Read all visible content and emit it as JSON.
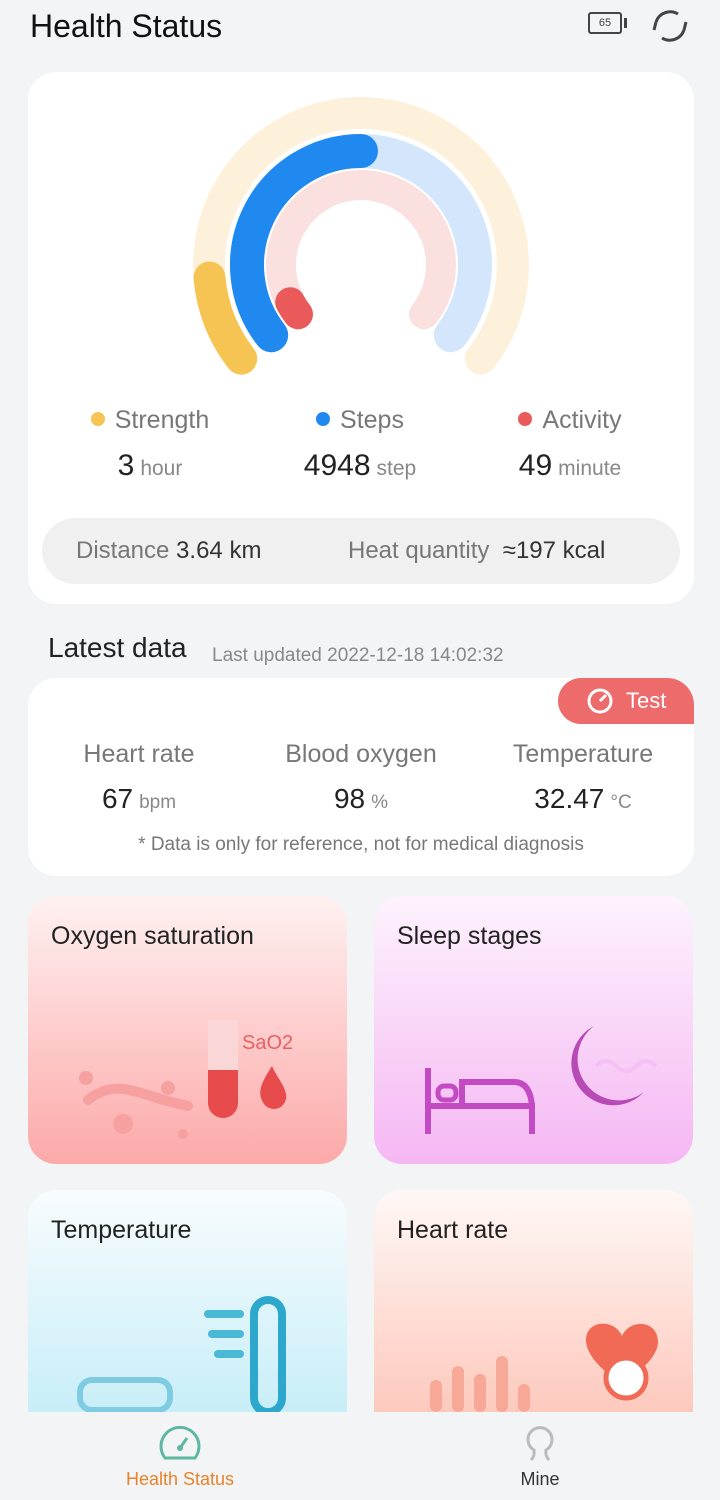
{
  "header": {
    "title": "Health Status",
    "battery": "65",
    "icons": [
      "battery-icon",
      "sync-icon"
    ]
  },
  "summary": {
    "rings": {
      "strength": {
        "progress": 0.13,
        "color": "#f6c452",
        "track": "#fdf1dc"
      },
      "steps": {
        "progress": 0.5,
        "color": "#2089f0",
        "track": "#d3e6fb"
      },
      "activity": {
        "progress": 0.04,
        "color": "#ea5a5a",
        "track": "#fbe0e0"
      }
    },
    "stats": [
      {
        "label": "Strength",
        "value": "3",
        "unit": "hour",
        "color": "#f6c452"
      },
      {
        "label": "Steps",
        "value": "4948",
        "unit": "step",
        "color": "#2089f0"
      },
      {
        "label": "Activity",
        "value": "49",
        "unit": "minute",
        "color": "#ea5a5a"
      }
    ],
    "distance_label": "Distance",
    "distance_value": "3.64",
    "distance_unit": "km",
    "heat_label": "Heat quantity",
    "heat_value": "≈197",
    "heat_unit": "kcal"
  },
  "latest": {
    "title": "Latest data",
    "updated": "Last updated 2022-12-18 14:02:32",
    "test_label": "Test",
    "metrics": [
      {
        "label": "Heart rate",
        "value": "67",
        "unit": "bpm"
      },
      {
        "label": "Blood oxygen",
        "value": "98",
        "unit": "%"
      },
      {
        "label": "Temperature",
        "value": "32.47",
        "unit": "°C"
      }
    ],
    "disclaimer": "* Data is only for reference, not for medical diagnosis"
  },
  "tiles": [
    {
      "title": "Oxygen saturation",
      "badge": "SaO2"
    },
    {
      "title": "Sleep stages"
    },
    {
      "title": "Temperature"
    },
    {
      "title": "Heart rate"
    }
  ],
  "nav": [
    {
      "label": "Health Status",
      "active": true,
      "color": "#e8832a"
    },
    {
      "label": "Mine",
      "active": false
    }
  ]
}
